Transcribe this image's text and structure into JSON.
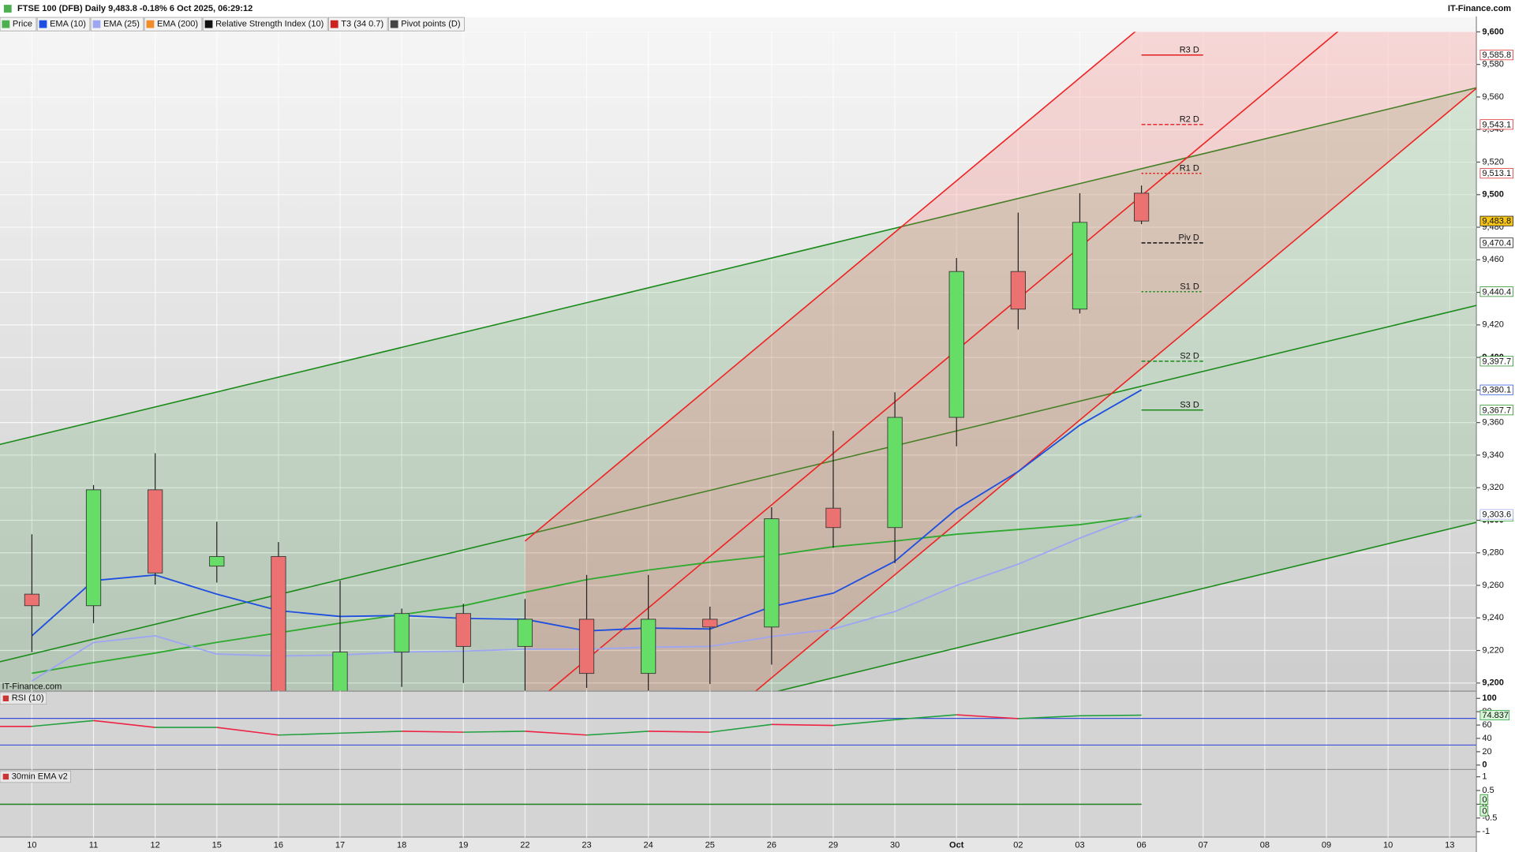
{
  "chart_data": {
    "type": "candlestick",
    "title": "FTSE 100 (DFB) Daily 9,483.8 -0.18% 6 Oct 2025, 06:29:12",
    "source": "IT-Finance.com",
    "legend": [
      {
        "name": "Price",
        "color": "#4caf50"
      },
      {
        "name": "EMA (10)",
        "color": "#1f4fe0"
      },
      {
        "name": "EMA (25)",
        "color": "#9ea6f2"
      },
      {
        "name": "EMA (200)",
        "color": "#f28c28"
      },
      {
        "name": "Relative Strength Index (10)",
        "color": "#111111"
      },
      {
        "name": "T3 (34 0.7)",
        "color": "#cc2222"
      },
      {
        "name": "Pivot points (D)",
        "color": "#444444"
      }
    ],
    "categories": [
      "10",
      "11",
      "12",
      "15",
      "16",
      "17",
      "18",
      "19",
      "22",
      "23",
      "24",
      "25",
      "26",
      "29",
      "30",
      "Oct",
      "02",
      "03",
      "06",
      "07",
      "08",
      "09",
      "10",
      "13"
    ],
    "open": [
      9254.6,
      9247.5,
      9318.7,
      9271.8,
      9277.7,
      9192,
      9219,
      9242.7,
      9222.5,
      9239.2,
      9205.9,
      9239.2,
      9234.4,
      9307.4,
      9295.5,
      9363.2,
      9452.8,
      9429.7,
      9500.9,
      null,
      null,
      null,
      null,
      null
    ],
    "high": [
      9291.4,
      9321.6,
      9341.2,
      9299.1,
      9286.6,
      9262.9,
      9245.7,
      9248.7,
      9251.6,
      9266.4,
      9266.4,
      9246.9,
      9308,
      9354.9,
      9378.6,
      9461.1,
      9489,
      9500.9,
      9505.6,
      null,
      null,
      null,
      null,
      null
    ],
    "low": [
      9219,
      9236.8,
      9260.5,
      9261.7,
      9185,
      9188,
      9197.6,
      9200,
      9192,
      9197,
      9192,
      9199.4,
      9211.3,
      9283,
      9273.6,
      9345.4,
      9417.2,
      9427,
      9481.9,
      null,
      null,
      null,
      null,
      null
    ],
    "close": [
      9247.5,
      9318.7,
      9267.6,
      9277.7,
      9192,
      9219,
      9242.7,
      9222.5,
      9239.2,
      9205.9,
      9239.2,
      9234.4,
      9300.9,
      9295.5,
      9363.2,
      9452.8,
      9429.7,
      9483,
      9483.8,
      null,
      null,
      null,
      null,
      null
    ],
    "close_label": "9,483.8",
    "up_color": "#66dd66",
    "down_color": "#ec7272",
    "series": [
      {
        "color": "#2eaa2e",
        "values": [
          9206,
          9212.5,
          9218.4,
          9225,
          9230.8,
          9236.8,
          9242,
          9247.5,
          9255.8,
          9263.5,
          9269.4,
          9274.2,
          9278.3,
          9283.7,
          9287.2,
          9291.4,
          9294.3,
          9297.3,
          9302.4,
          null,
          null,
          null,
          null,
          null
        ],
        "value_label": "9,302.4"
      },
      {
        "color": "#9ea6f2",
        "values": [
          9201.2,
          9224.9,
          9229,
          9217.8,
          9216.6,
          9217.2,
          9219,
          9219.6,
          9220.8,
          9220.8,
          9222,
          9222.5,
          9228.5,
          9233.2,
          9243.9,
          9259.9,
          9273,
          9289,
          9303.6,
          null,
          null,
          null,
          null,
          null
        ],
        "value_label": "9,303.6"
      },
      {
        "color": "#1f4fe0",
        "values": [
          9229,
          9262.9,
          9266.4,
          9254.6,
          9244.5,
          9240.9,
          9241.5,
          9239.7,
          9239.2,
          9232,
          9233.8,
          9233.2,
          9246.9,
          9255.2,
          9274.8,
          9306.8,
          9329.9,
          9358.4,
          9380.1,
          null,
          null,
          null,
          null,
          null
        ],
        "value_label": "9,380.1"
      }
    ],
    "channels": [
      {
        "color": "#1a8a1a",
        "fill": "rgba(60,160,60,0.16)",
        "x": [
          "10",
          "13"
        ],
        "extend": "both",
        "lines": [
          [
            9351.3,
            9561.7
          ],
          [
            9217.8,
            9428
          ],
          [
            9084.3,
            9294.7
          ]
        ]
      },
      {
        "color": "#ee2222",
        "fill": "rgba(255,90,90,0.2)",
        "x": [
          "22",
          "07"
        ],
        "extend": "right",
        "lines": [
          [
            9287.2,
            9635
          ],
          [
            9182.8,
            9531
          ],
          [
            9076.5,
            9424.9
          ]
        ]
      }
    ],
    "pivots": {
      "from": "06",
      "to": "07",
      "levels": [
        {
          "name": "R3 D",
          "value": 9585.8,
          "label": "9,585.8",
          "color": "#e02020",
          "style": "solid"
        },
        {
          "name": "R2 D",
          "value": 9543.1,
          "label": "9,543.1",
          "color": "#e02020",
          "style": "dashed"
        },
        {
          "name": "R1 D",
          "value": 9513.1,
          "label": "9,513.1",
          "color": "#e02020",
          "style": "dotted"
        },
        {
          "name": "Piv D",
          "value": 9470.4,
          "label": "9,470.4",
          "color": "#111111",
          "style": "dashed"
        },
        {
          "name": "S1 D",
          "value": 9440.4,
          "label": "9,440.4",
          "color": "#1a8a1a",
          "style": "dotted"
        },
        {
          "name": "S2 D",
          "value": 9397.7,
          "label": "9,397.7",
          "color": "#1a8a1a",
          "style": "dashed"
        },
        {
          "name": "S3 D",
          "value": 9367.7,
          "label": "9,367.7",
          "color": "#1a8a1a",
          "style": "solid"
        }
      ]
    },
    "ylim": [
      9195.3,
      9608.9
    ],
    "yticks": [
      {
        "value": 9200,
        "label": "9,200"
      },
      {
        "value": 9220,
        "label": "9,220"
      },
      {
        "value": 9240,
        "label": "9,240"
      },
      {
        "value": 9260,
        "label": "9,260"
      },
      {
        "value": 9280,
        "label": "9,280"
      },
      {
        "value": 9300,
        "label": "9,300"
      },
      {
        "value": 9320,
        "label": "9,320"
      },
      {
        "value": 9340,
        "label": "9,340"
      },
      {
        "value": 9360,
        "label": "9,360"
      },
      {
        "value": 9380,
        "label": "9,380"
      },
      {
        "value": 9400,
        "label": "9,400"
      },
      {
        "value": 9420,
        "label": "9,420"
      },
      {
        "value": 9440,
        "label": "9,440"
      },
      {
        "value": 9460,
        "label": "9,460"
      },
      {
        "value": 9480,
        "label": "9,480"
      },
      {
        "value": 9500,
        "label": "9,500"
      },
      {
        "value": 9520,
        "label": "9,520"
      },
      {
        "value": 9540,
        "label": "9,540"
      },
      {
        "value": 9560,
        "label": "9,560"
      },
      {
        "value": 9580,
        "label": "9,580"
      },
      {
        "value": 9600,
        "label": "9,600"
      }
    ],
    "grid": true,
    "rsi": {
      "title": "RSI (10)",
      "ylim": [
        -5.8,
        110.1
      ],
      "yticks": [
        0,
        20,
        40,
        60,
        80,
        100
      ],
      "levels": [
        70,
        30
      ],
      "level_color": "#3b4fd8",
      "up_color": "#22a040",
      "down_color": "#ee2244",
      "values": [
        58,
        66.7,
        56.5,
        56.5,
        45,
        47.8,
        50.7,
        49.3,
        50.7,
        45,
        50.7,
        49.3,
        60.9,
        59.4,
        68,
        75.4,
        69.6,
        73.9,
        74.837,
        null,
        null,
        null,
        null,
        null
      ]
    },
    "ema_v2": {
      "title": "30min EMA v2",
      "ylim": [
        -1.21,
        1.25
      ],
      "yticks": [
        -1,
        -0.5,
        0,
        0.5,
        1
      ],
      "series": [
        {
          "color": "#111111",
          "values": [
            0,
            0,
            0,
            0,
            0,
            0,
            0,
            0,
            0,
            0,
            0,
            0,
            0,
            0,
            0,
            0,
            0,
            0,
            0,
            null,
            null,
            null,
            null,
            null
          ]
        },
        {
          "color": "#1a8a1a",
          "values": [
            0,
            0,
            0,
            0,
            0,
            0,
            0,
            0,
            0,
            0,
            0,
            0,
            0,
            0,
            0,
            0,
            0,
            0,
            0,
            null,
            null,
            null,
            null,
            null
          ]
        }
      ]
    }
  }
}
